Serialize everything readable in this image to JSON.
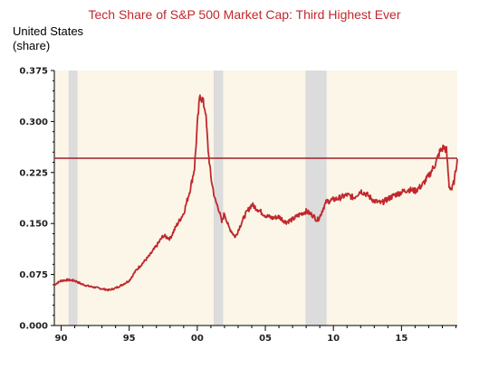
{
  "chart_data": {
    "type": "line",
    "title": "Tech Share of S&P 500 Market Cap: Third Highest Ever",
    "region_label": "United States",
    "unit_label": "(share)",
    "xlim": [
      1989.5,
      2019.1
    ],
    "ylim": [
      0,
      0.375
    ],
    "y_ticks": [
      0.0,
      0.075,
      0.15,
      0.225,
      0.3,
      0.375
    ],
    "y_tick_labels": [
      "0.000",
      "0.075",
      "0.150",
      "0.225",
      "0.300",
      "0.375"
    ],
    "x_ticks": [
      1990,
      1995,
      2000,
      2005,
      2010,
      2015
    ],
    "x_tick_labels": [
      "90",
      "95",
      "00",
      "05",
      "10",
      "15"
    ],
    "recessions": [
      [
        1990.55,
        1991.2
      ],
      [
        2001.2,
        2001.9
      ],
      [
        2007.95,
        2009.5
      ]
    ],
    "reference_line": 0.246,
    "colors": {
      "line": "#c0282d",
      "reference": "#a01e2a",
      "background": "#fcf6e8",
      "recession": "#dcdcdc",
      "title": "#c0282d"
    },
    "series": [
      {
        "points": [
          [
            1989.5,
            0.06
          ],
          [
            1990.0,
            0.066
          ],
          [
            1990.5,
            0.067
          ],
          [
            1991.0,
            0.066
          ],
          [
            1991.5,
            0.061
          ],
          [
            1992.0,
            0.058
          ],
          [
            1992.5,
            0.056
          ],
          [
            1993.0,
            0.054
          ],
          [
            1993.5,
            0.052
          ],
          [
            1994.0,
            0.055
          ],
          [
            1994.5,
            0.06
          ],
          [
            1995.0,
            0.066
          ],
          [
            1995.5,
            0.081
          ],
          [
            1996.0,
            0.092
          ],
          [
            1996.5,
            0.103
          ],
          [
            1997.0,
            0.117
          ],
          [
            1997.5,
            0.132
          ],
          [
            1998.0,
            0.128
          ],
          [
            1998.5,
            0.148
          ],
          [
            1999.0,
            0.165
          ],
          [
            1999.5,
            0.202
          ],
          [
            1999.8,
            0.232
          ],
          [
            2000.0,
            0.295
          ],
          [
            2000.2,
            0.34
          ],
          [
            2000.4,
            0.33
          ],
          [
            2000.6,
            0.316
          ],
          [
            2000.8,
            0.258
          ],
          [
            2001.0,
            0.218
          ],
          [
            2001.3,
            0.185
          ],
          [
            2001.6,
            0.17
          ],
          [
            2001.8,
            0.152
          ],
          [
            2002.0,
            0.165
          ],
          [
            2002.3,
            0.145
          ],
          [
            2002.6,
            0.136
          ],
          [
            2002.8,
            0.13
          ],
          [
            2003.0,
            0.14
          ],
          [
            2003.5,
            0.162
          ],
          [
            2004.0,
            0.178
          ],
          [
            2004.5,
            0.17
          ],
          [
            2005.0,
            0.162
          ],
          [
            2005.5,
            0.158
          ],
          [
            2006.0,
            0.16
          ],
          [
            2006.5,
            0.152
          ],
          [
            2007.0,
            0.156
          ],
          [
            2007.5,
            0.163
          ],
          [
            2008.0,
            0.168
          ],
          [
            2008.5,
            0.162
          ],
          [
            2008.8,
            0.155
          ],
          [
            2009.0,
            0.16
          ],
          [
            2009.3,
            0.175
          ],
          [
            2009.5,
            0.182
          ],
          [
            2010.0,
            0.185
          ],
          [
            2010.5,
            0.188
          ],
          [
            2011.0,
            0.192
          ],
          [
            2011.5,
            0.188
          ],
          [
            2012.0,
            0.198
          ],
          [
            2012.5,
            0.192
          ],
          [
            2013.0,
            0.183
          ],
          [
            2013.5,
            0.18
          ],
          [
            2014.0,
            0.186
          ],
          [
            2014.5,
            0.192
          ],
          [
            2015.0,
            0.196
          ],
          [
            2015.5,
            0.2
          ],
          [
            2016.0,
            0.198
          ],
          [
            2016.5,
            0.206
          ],
          [
            2017.0,
            0.22
          ],
          [
            2017.5,
            0.238
          ],
          [
            2017.8,
            0.255
          ],
          [
            2018.0,
            0.26
          ],
          [
            2018.1,
            0.262
          ],
          [
            2018.3,
            0.258
          ],
          [
            2018.5,
            0.205
          ],
          [
            2018.7,
            0.2
          ],
          [
            2018.9,
            0.215
          ],
          [
            2019.0,
            0.23
          ],
          [
            2019.1,
            0.245
          ]
        ]
      }
    ]
  }
}
